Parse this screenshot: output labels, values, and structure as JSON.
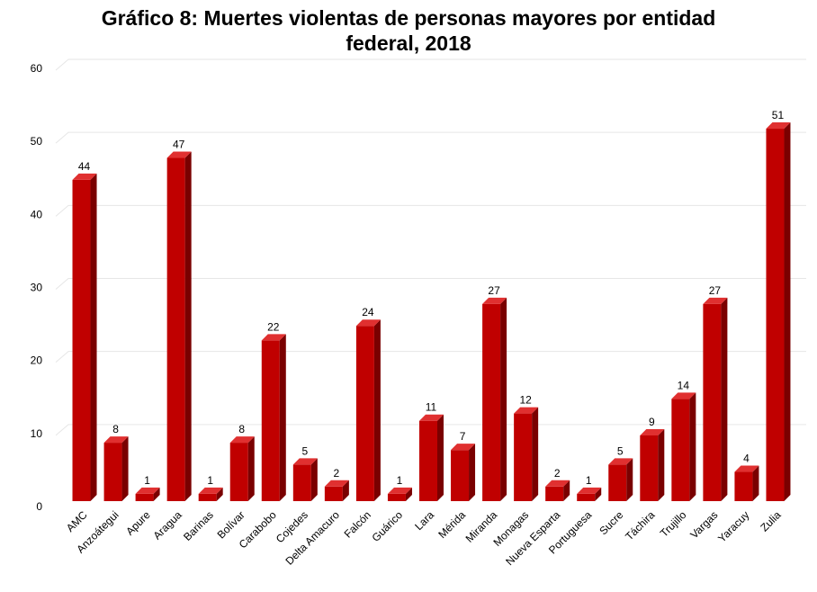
{
  "chart_data": {
    "type": "bar",
    "title_line1": "Gráfico 8: Muertes violentas de personas mayores por entidad",
    "title_line2": "federal, 2018",
    "categories": [
      "AMC",
      "Anzoátegui",
      "Apure",
      "Aragua",
      "Barinas",
      "Bolívar",
      "Carabobo",
      "Cojedes",
      "Delta Amacuro",
      "Falcón",
      "Guárico",
      "Lara",
      "Mérida",
      "Miranda",
      "Monagas",
      "Nueva Esparta",
      "Portuguesa",
      "Sucre",
      "Táchira",
      "Trujillo",
      "Vargas",
      "Yaracuy",
      "Zulia"
    ],
    "values": [
      44,
      8,
      1,
      47,
      1,
      8,
      22,
      5,
      2,
      24,
      1,
      11,
      7,
      27,
      12,
      2,
      1,
      5,
      9,
      14,
      27,
      4,
      51
    ],
    "y_ticks": [
      0,
      10,
      20,
      30,
      40,
      50,
      60
    ],
    "ylim": [
      0,
      60
    ],
    "bar_style": "3d",
    "grid": true,
    "colors": {
      "bar_front": "#c00000",
      "bar_side": "#7a0000",
      "bar_top": "#e03030",
      "grid": "#e6e6e6"
    }
  }
}
